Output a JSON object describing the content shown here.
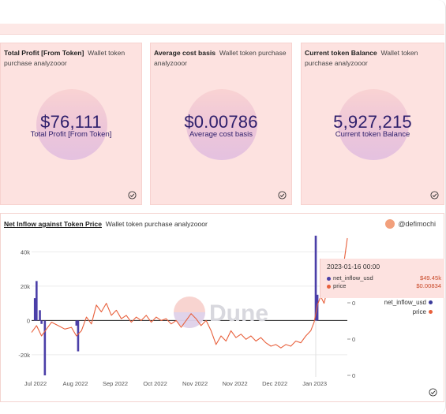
{
  "cards": [
    {
      "title": "Total Profit [From Token]",
      "subtitle": "Wallet token purchase analyzooor",
      "value": "$76,111",
      "label": "Total Profit [From Token]"
    },
    {
      "title": "Average cost basis",
      "subtitle": "Wallet token purchase analyzooor",
      "value": "$0.00786",
      "label": "Average cost basis"
    },
    {
      "title": "Current token Balance",
      "subtitle": "Wallet token purchase analyzooor",
      "value": "5,927,215",
      "label": "Current token Balance"
    }
  ],
  "chart": {
    "title": "Net Inflow against Token Price",
    "subtitle": "Wallet token purchase analyzooor",
    "author": "@defimochi",
    "watermark": "Dune",
    "tooltip": {
      "date": "2023-01-16 00:00",
      "rows": [
        {
          "name": "net_inflow_usd",
          "value": "$49.45k",
          "color": "#4b3fa8"
        },
        {
          "name": "price",
          "value": "$0.00834",
          "color": "#e8603c"
        }
      ]
    },
    "legend": [
      {
        "name": "net_inflow_usd",
        "color": "#3a3a9a"
      },
      {
        "name": "price",
        "color": "#e8603c"
      }
    ],
    "colors": {
      "bars": "#4b3fa8",
      "line": "#e8603c"
    }
  },
  "chart_data": {
    "type": "line",
    "title": "Net Inflow against Token Price",
    "x_ticks": [
      "Jul 2022",
      "Aug 2022",
      "Sep 2022",
      "Oct 2022",
      "Nov 2022",
      "Nov 2022",
      "Dec 2022",
      "Jan 2023"
    ],
    "y_ticks": [
      "40k",
      "20k",
      "0",
      "-20k"
    ],
    "y_right_ticks": [
      "0",
      "0",
      "0"
    ],
    "ylim": [
      -32000,
      48000
    ],
    "xlim": [
      0,
      190
    ],
    "grid": true,
    "legend_position": "right",
    "series": [
      {
        "name": "net_inflow_usd",
        "type": "bar",
        "points": [
          [
            2,
            13000
          ],
          [
            3,
            23000
          ],
          [
            5,
            6000
          ],
          [
            6,
            -2000
          ],
          [
            8,
            -32000
          ],
          [
            27,
            -3000
          ],
          [
            28,
            -18000
          ],
          [
            171,
            49450
          ],
          [
            172,
            15000
          ]
        ]
      },
      {
        "name": "price",
        "type": "line",
        "points": [
          [
            0,
            -7000
          ],
          [
            3,
            -3000
          ],
          [
            6,
            -9000
          ],
          [
            9,
            -5000
          ],
          [
            12,
            -1000
          ],
          [
            16,
            -3000
          ],
          [
            20,
            -5000
          ],
          [
            24,
            -4000
          ],
          [
            27,
            -9000
          ],
          [
            30,
            -6000
          ],
          [
            33,
            2000
          ],
          [
            36,
            -2000
          ],
          [
            39,
            9000
          ],
          [
            42,
            5000
          ],
          [
            45,
            10000
          ],
          [
            48,
            3000
          ],
          [
            51,
            6000
          ],
          [
            54,
            1000
          ],
          [
            57,
            3000
          ],
          [
            60,
            -1000
          ],
          [
            63,
            2000
          ],
          [
            66,
            0
          ],
          [
            69,
            3000
          ],
          [
            72,
            -1000
          ],
          [
            75,
            2000
          ],
          [
            78,
            0
          ],
          [
            81,
            1000
          ],
          [
            84,
            -2000
          ],
          [
            87,
            0
          ],
          [
            90,
            -4000
          ],
          [
            93,
            0
          ],
          [
            96,
            4000
          ],
          [
            99,
            1000
          ],
          [
            102,
            -3000
          ],
          [
            105,
            0
          ],
          [
            108,
            -6000
          ],
          [
            111,
            -14000
          ],
          [
            114,
            -9000
          ],
          [
            117,
            -12000
          ],
          [
            120,
            -6000
          ],
          [
            123,
            -10000
          ],
          [
            126,
            -8000
          ],
          [
            129,
            -11000
          ],
          [
            132,
            -9000
          ],
          [
            135,
            -12000
          ],
          [
            138,
            -10000
          ],
          [
            141,
            -13000
          ],
          [
            144,
            -15000
          ],
          [
            147,
            -14000
          ],
          [
            150,
            -16000
          ],
          [
            153,
            -14000
          ],
          [
            156,
            -15000
          ],
          [
            159,
            -12000
          ],
          [
            162,
            -13000
          ],
          [
            165,
            -9000
          ],
          [
            168,
            -6000
          ],
          [
            170,
            -1000
          ],
          [
            172,
            9000
          ],
          [
            174,
            14000
          ],
          [
            176,
            10000
          ],
          [
            178,
            18000
          ],
          [
            180,
            14000
          ],
          [
            182,
            20000
          ],
          [
            184,
            16000
          ],
          [
            186,
            22000
          ],
          [
            188,
            34000
          ],
          [
            190,
            48000
          ]
        ]
      }
    ]
  }
}
